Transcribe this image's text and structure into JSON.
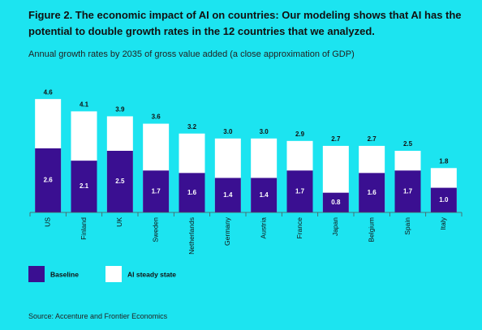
{
  "chart_data": {
    "type": "bar",
    "title": "Figure 2. The economic impact of AI on countries: Our modeling shows that AI has the potential to double growth rates in the 12 countries that we analyzed.",
    "subtitle": "Annual growth rates by 2035 of gross value added (a close approximation of GDP)",
    "source": "Source: Accenture and Frontier Economics",
    "categories": [
      "US",
      "Finland",
      "UK",
      "Sweden",
      "Netherlands",
      "Germany",
      "Austria",
      "France",
      "Japan",
      "Belgium",
      "Spain",
      "Italy"
    ],
    "series": [
      {
        "name": "AI steady state",
        "color": "#ffffff",
        "values": [
          4.6,
          4.1,
          3.9,
          3.6,
          3.2,
          3.0,
          3.0,
          2.9,
          2.7,
          2.7,
          2.5,
          1.8
        ],
        "value_labels": [
          "4.6",
          "4.1",
          "3.9",
          "3.6",
          "3.2",
          "3.0",
          "3.0",
          "2.9",
          "2.7",
          "2.7",
          "2.5",
          "1.8"
        ]
      },
      {
        "name": "Baseline",
        "color": "#3a0f91",
        "values": [
          2.6,
          2.1,
          2.5,
          1.7,
          1.6,
          1.4,
          1.4,
          1.7,
          0.8,
          1.6,
          1.7,
          1.0
        ],
        "value_labels": [
          "2.6",
          "2.1",
          "2.5",
          "1.7",
          "1.6",
          "1.4",
          "1.4",
          "1.7",
          "0.8",
          "1.6",
          "1.7",
          "1.0"
        ]
      }
    ],
    "ylim": [
      0,
      5
    ]
  }
}
